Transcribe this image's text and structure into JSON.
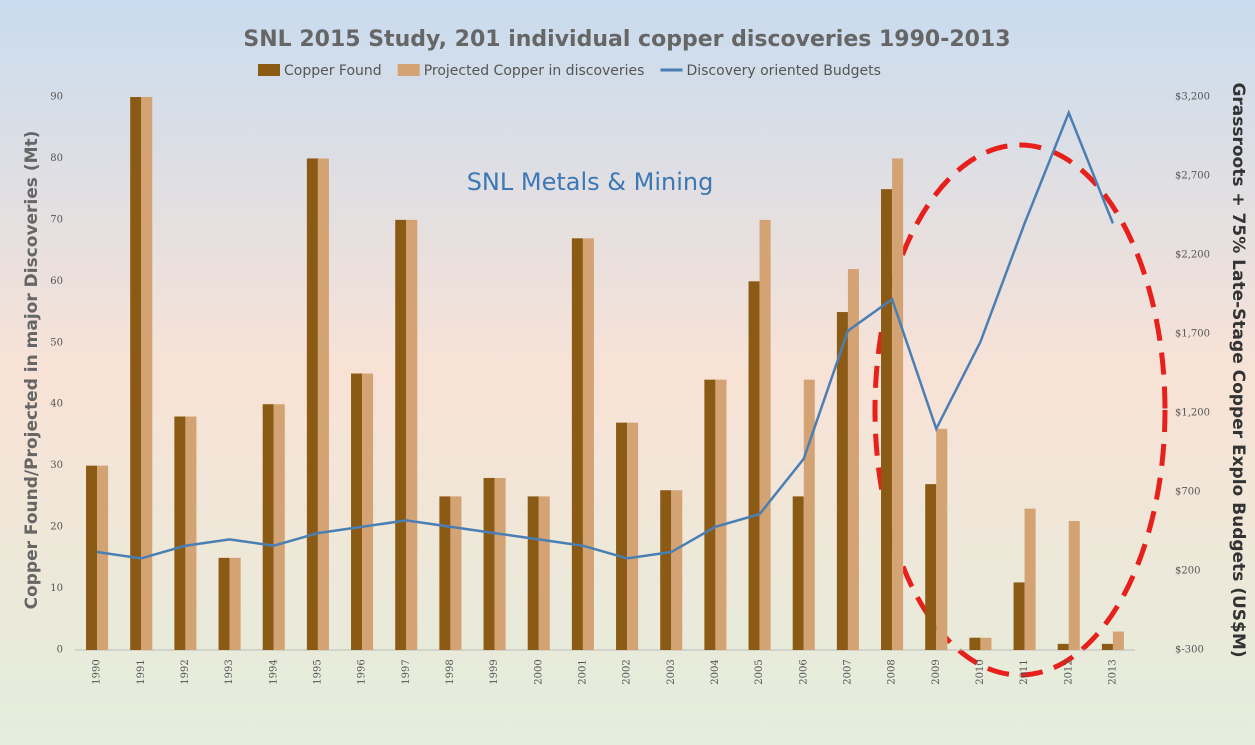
{
  "chart_data": {
    "type": "bar",
    "title": "SNL 2015 Study, 201 individual copper discoveries 1990-2013",
    "watermark": "SNL Metals & Mining",
    "y_label": "Copper Found/Projected in major Discoveries (Mt)",
    "y2_label": "Grassroots + 75% Late-Stage Copper Explo Budgets (US$M)",
    "categories": [
      "1990",
      "1991",
      "1992",
      "1993",
      "1994",
      "1995",
      "1996",
      "1997",
      "1998",
      "1999",
      "2000",
      "2001",
      "2002",
      "2003",
      "2004",
      "2005",
      "2006",
      "2007",
      "2008",
      "2009",
      "2010",
      "2011",
      "2012",
      "2013"
    ],
    "series": [
      {
        "name": "Copper Found",
        "color": "#8b5a14",
        "values": [
          30,
          90,
          38,
          15,
          40,
          80,
          45,
          70,
          25,
          28,
          25,
          67,
          37,
          26,
          44,
          60,
          25,
          55,
          75,
          27,
          2,
          11,
          1,
          1
        ]
      },
      {
        "name": "Projected Copper in discoveries",
        "color": "#d4a373",
        "values": [
          30,
          90,
          38,
          15,
          40,
          80,
          45,
          70,
          25,
          28,
          25,
          67,
          37,
          26,
          44,
          70,
          44,
          62,
          80,
          36,
          2,
          23,
          21,
          3
        ]
      },
      {
        "name": "Discovery oriented Budgets",
        "color": "#4a7fb5",
        "type": "line",
        "axis": "y2",
        "values": [
          320,
          280,
          360,
          400,
          360,
          440,
          480,
          520,
          480,
          440,
          400,
          360,
          280,
          320,
          480,
          560,
          910,
          1720,
          1920,
          1100,
          1650,
          2400,
          3100,
          2400
        ]
      }
    ],
    "ylim": [
      0,
      90
    ],
    "yticks": [
      0,
      10,
      20,
      30,
      40,
      50,
      60,
      70,
      80,
      90
    ],
    "y2lim": [
      -300,
      3200
    ],
    "y2ticks": [
      {
        "value": -300,
        "label": "$-300"
      },
      {
        "value": 200,
        "label": "$200"
      },
      {
        "value": 700,
        "label": "$700"
      },
      {
        "value": 1200,
        "label": "$1,200"
      },
      {
        "value": 1700,
        "label": "$1,700"
      },
      {
        "value": 2200,
        "label": "$2,200"
      },
      {
        "value": 2700,
        "label": "$2,700"
      },
      {
        "value": 3200,
        "label": "$3,200"
      }
    ],
    "legend": "top"
  }
}
